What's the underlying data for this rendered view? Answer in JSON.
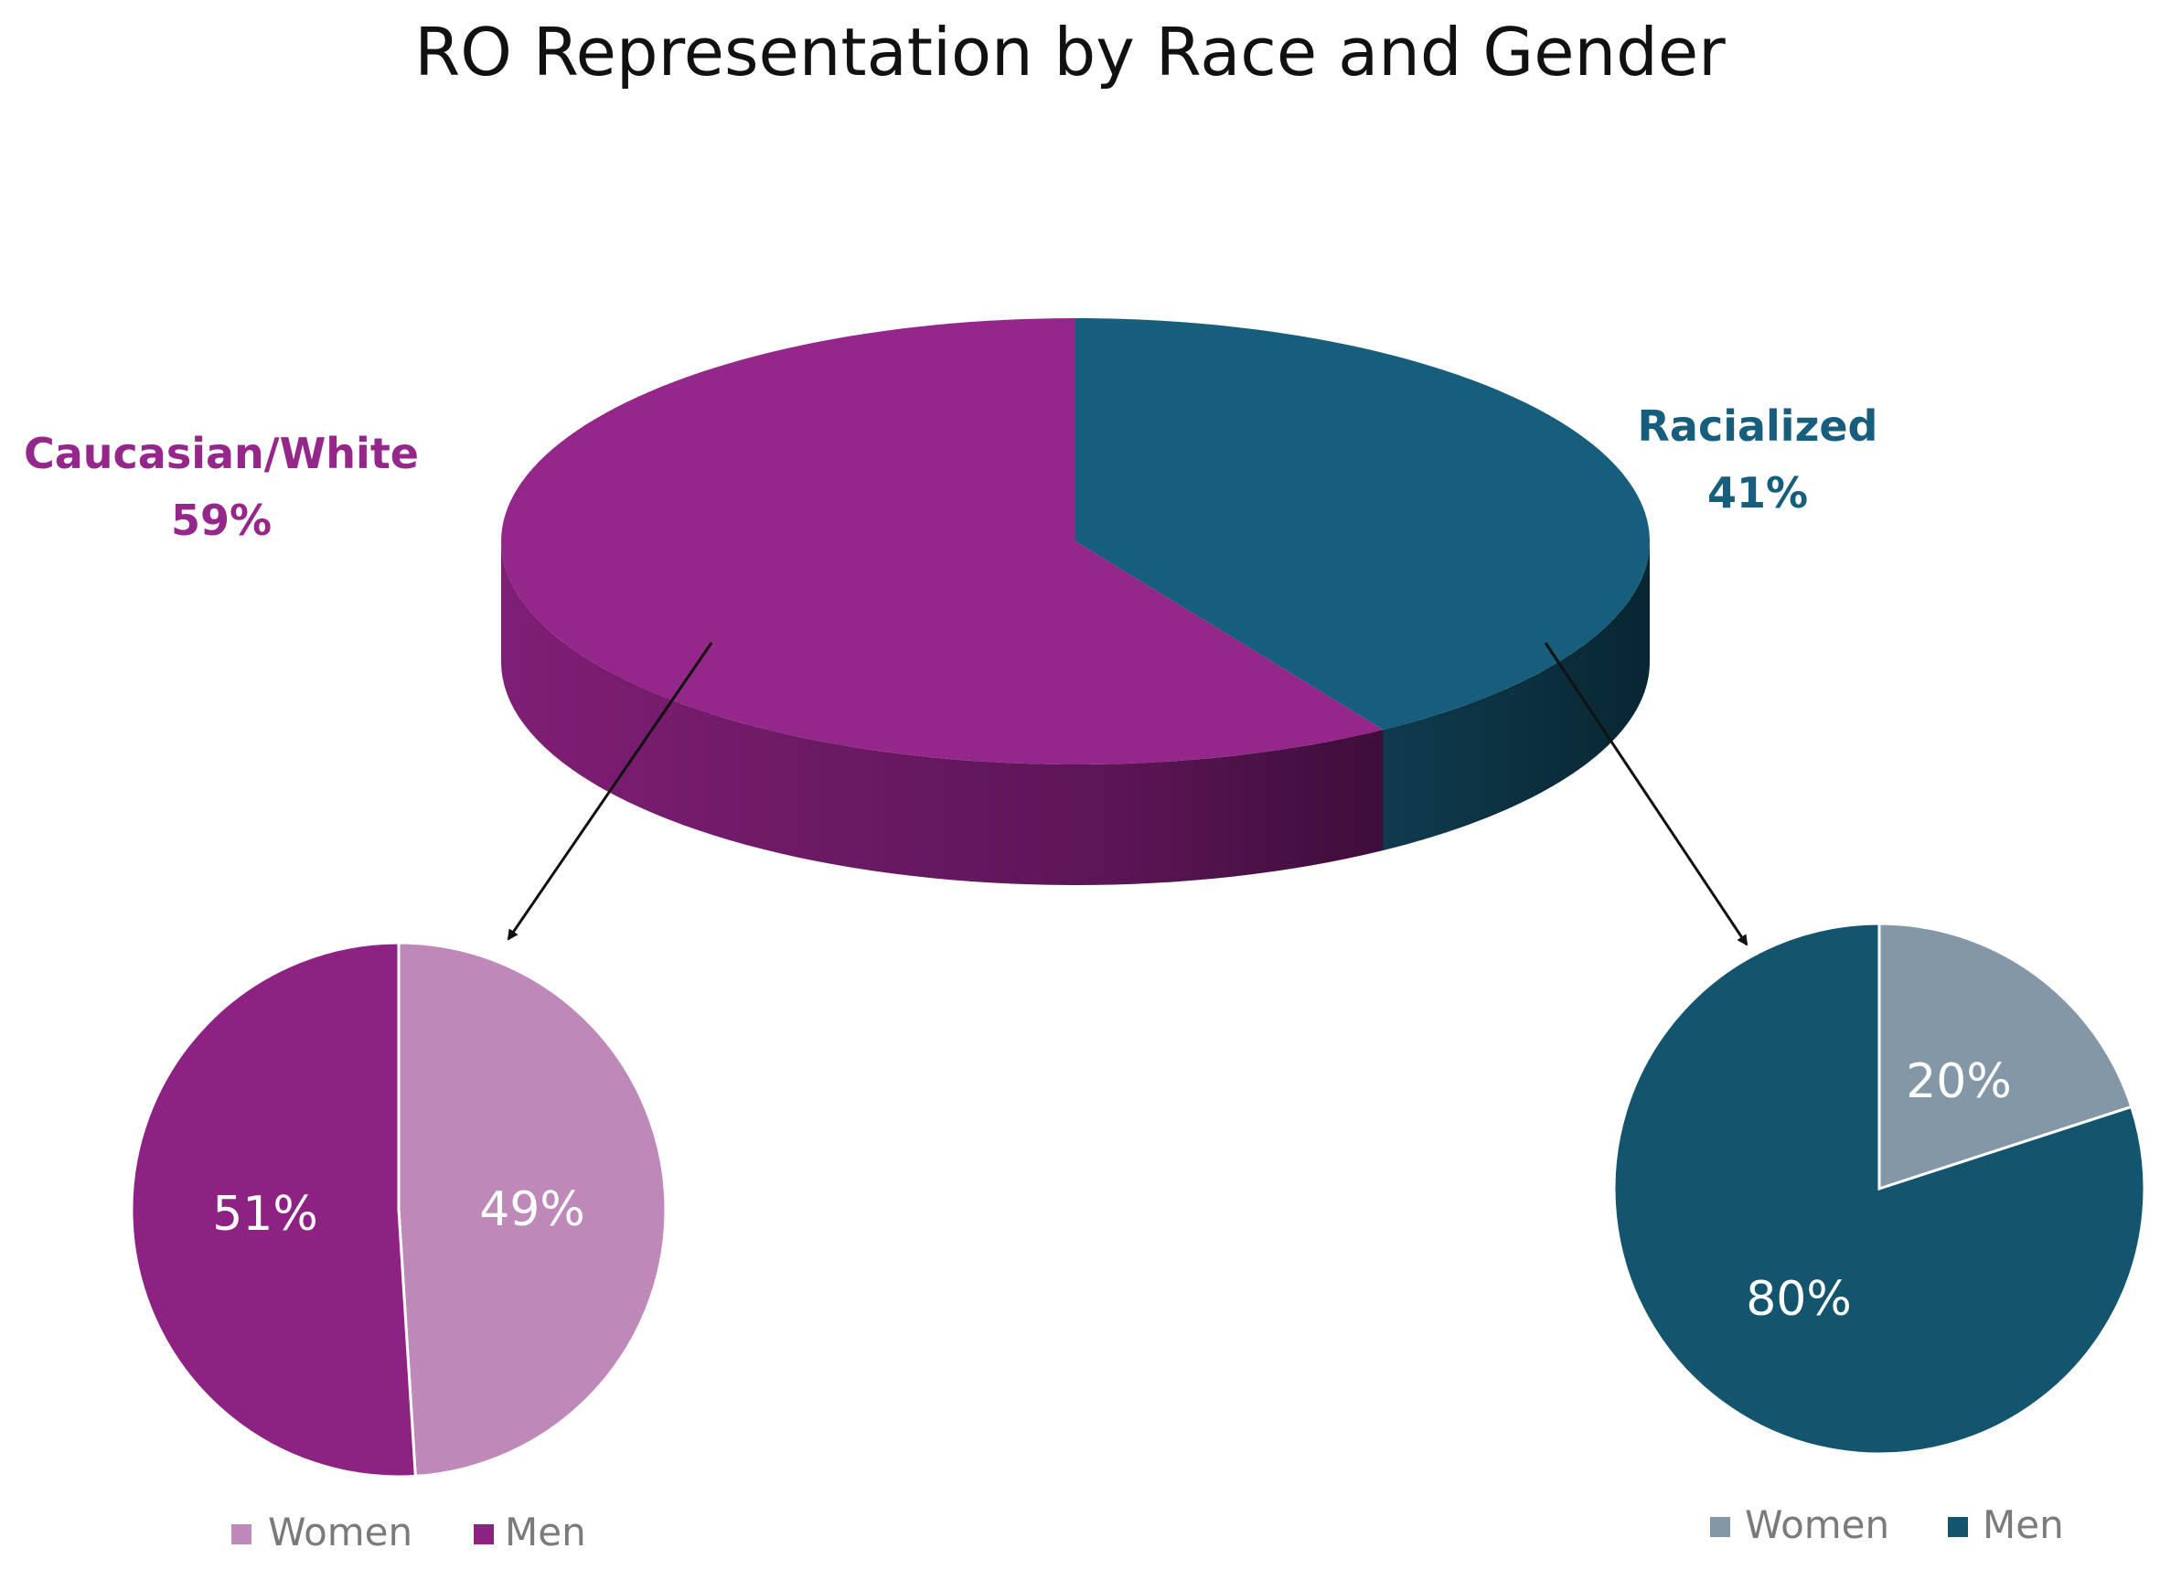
{
  "chart_data": [
    {
      "type": "pie",
      "title": "RO Representation by Race and Gender",
      "categories": [
        "Caucasian/White",
        "Racialized"
      ],
      "values": [
        59,
        41
      ],
      "labels": [
        "59%",
        "41%"
      ],
      "colors": [
        "#96278A",
        "#175E7D"
      ]
    },
    {
      "type": "pie",
      "group": "Caucasian/White",
      "categories": [
        "Women",
        "Men"
      ],
      "values": [
        49,
        51
      ],
      "labels": [
        "49%",
        "51%"
      ],
      "colors": [
        "#BE88B8",
        "#8E2282"
      ],
      "legend": [
        "Women",
        "Men"
      ]
    },
    {
      "type": "pie",
      "group": "Racialized",
      "categories": [
        "Women",
        "Men"
      ],
      "values": [
        20,
        80
      ],
      "labels": [
        "20%",
        "80%"
      ],
      "colors": [
        "#8497A6",
        "#13546F"
      ],
      "legend": [
        "Women",
        "Men"
      ]
    }
  ]
}
